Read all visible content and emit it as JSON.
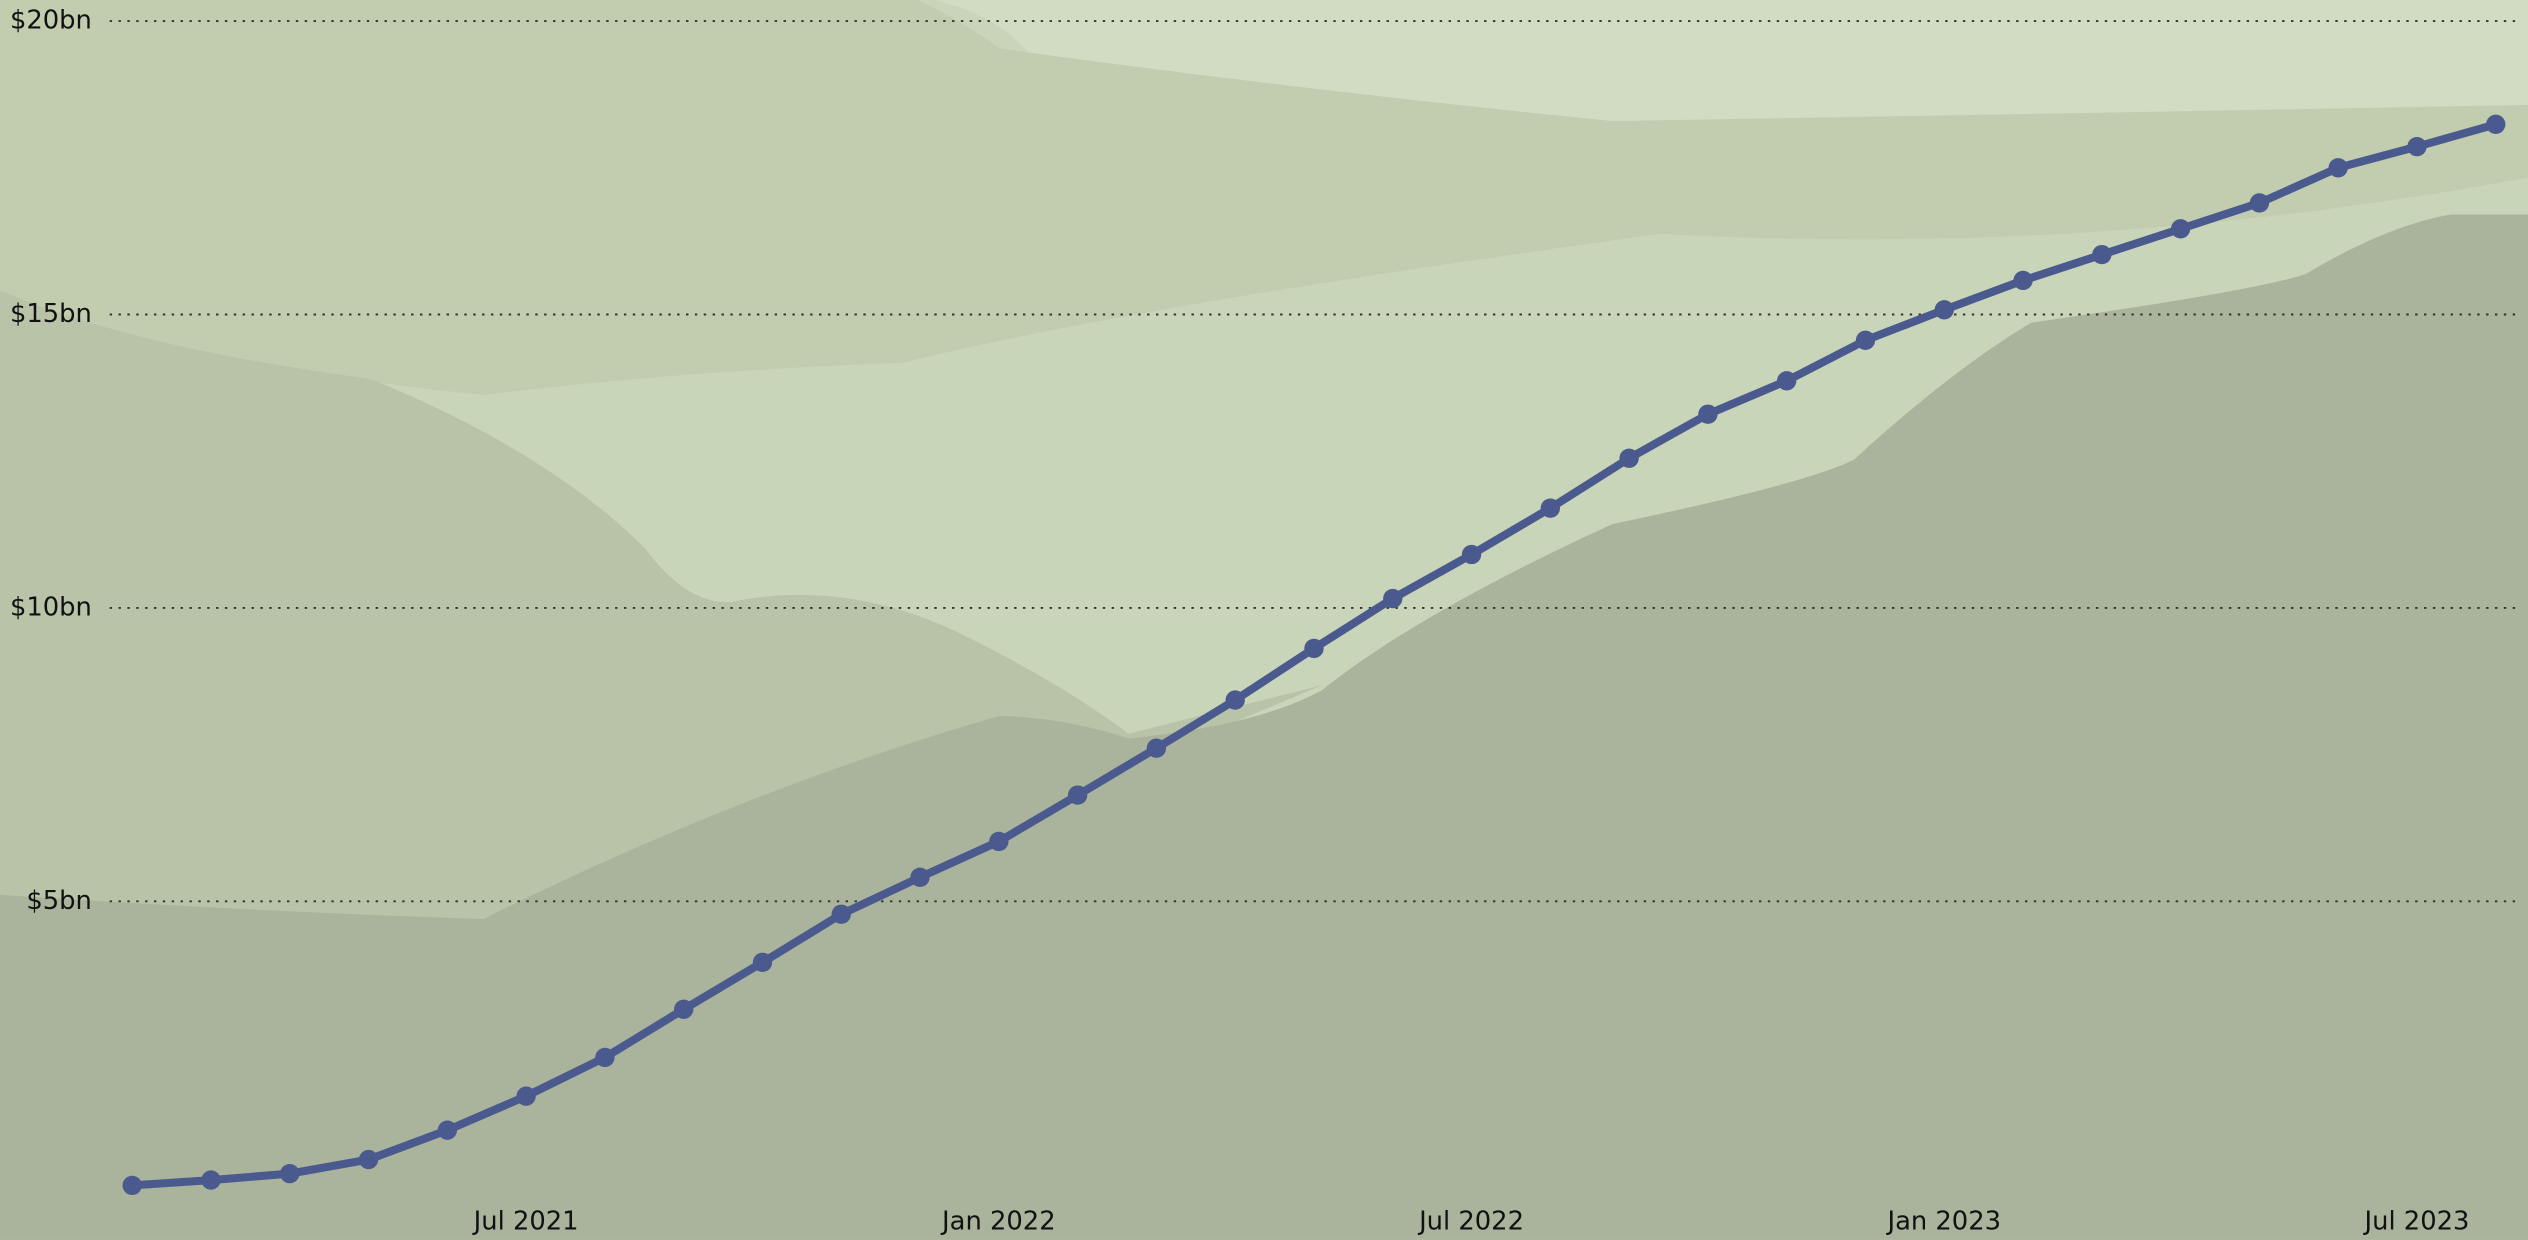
{
  "chart_data": {
    "type": "line",
    "x": [
      "2021-02",
      "2021-03",
      "2021-04",
      "2021-05",
      "2021-06",
      "2021-07",
      "2021-08",
      "2021-09",
      "2021-10",
      "2021-11",
      "2021-12",
      "2022-01",
      "2022-02",
      "2022-03",
      "2022-04",
      "2022-05",
      "2022-06",
      "2022-07",
      "2022-08",
      "2022-09",
      "2022-10",
      "2022-11",
      "2022-12",
      "2023-01",
      "2023-02",
      "2023-03",
      "2023-04",
      "2023-05",
      "2023-06",
      "2023-07",
      "2023-08"
    ],
    "series": [
      {
        "color": "#4b5a8e",
        "values": [
          0.16,
          0.25,
          0.36,
          0.6,
          1.1,
          1.68,
          2.34,
          3.16,
          3.96,
          4.78,
          5.41,
          6.02,
          6.81,
          7.61,
          8.43,
          9.31,
          10.16,
          10.91,
          11.7,
          12.55,
          13.3,
          13.87,
          14.56,
          15.08,
          15.58,
          16.02,
          16.46,
          16.9,
          17.5,
          17.86,
          18.24
        ]
      }
    ],
    "ylim": [
      0,
      20
    ],
    "yticks": [
      {
        "value": 5,
        "label": "$5bn"
      },
      {
        "value": 10,
        "label": "$10bn"
      },
      {
        "value": 15,
        "label": "$15bn"
      },
      {
        "value": 20,
        "label": "$20bn"
      }
    ],
    "xticks": [
      {
        "value": "2021-07",
        "label": "Jul 2021"
      },
      {
        "value": "2022-01",
        "label": "Jan 2022"
      },
      {
        "value": "2022-07",
        "label": "Jul 2022"
      },
      {
        "value": "2023-01",
        "label": "Jan 2023"
      },
      {
        "value": "2023-07",
        "label": "Jul 2023"
      }
    ],
    "grid": true
  }
}
